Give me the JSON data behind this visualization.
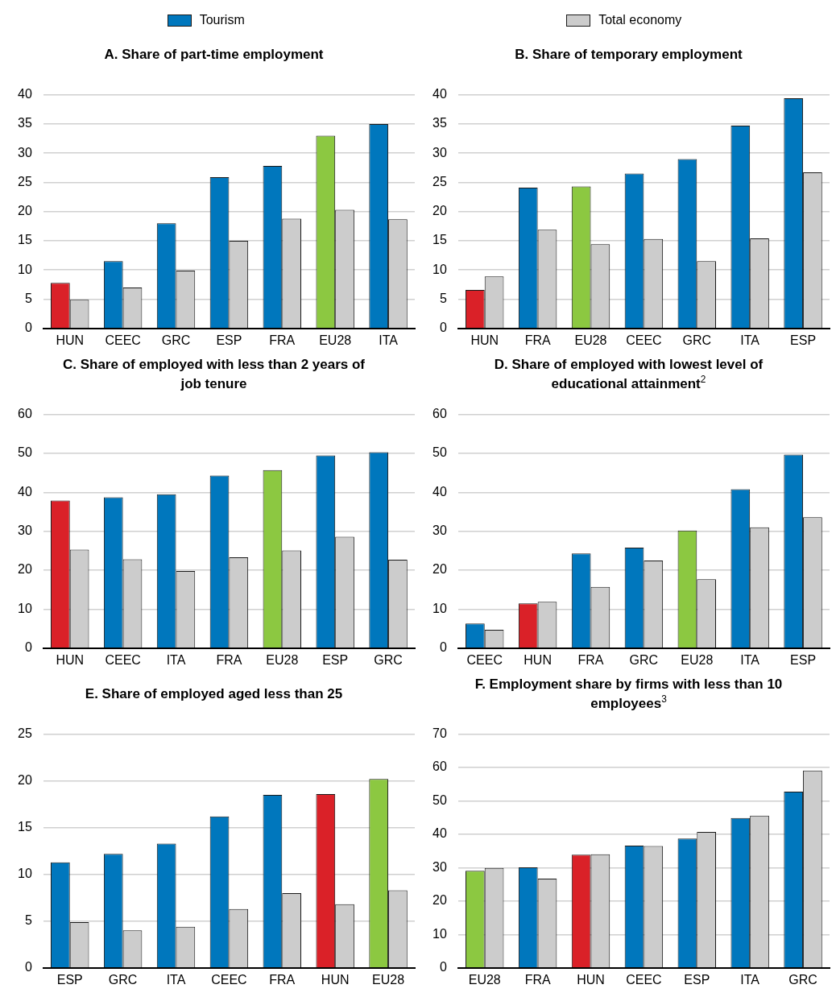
{
  "chart_data": [
    {
      "type": "bar",
      "title": "A. Share of part-time employment",
      "categories": [
        "HUN",
        "CEEC",
        "GRC",
        "ESP",
        "FRA",
        "EU28",
        "ITA"
      ],
      "legend": "top",
      "grid": "y",
      "ylim": [
        0,
        40
      ],
      "yticks": [
        0,
        5,
        10,
        15,
        20,
        25,
        30,
        35,
        40
      ],
      "series": [
        {
          "name": "Tourism",
          "color": "#0077bd",
          "colors": [
            "#da2128",
            "#0077bd",
            "#0077bd",
            "#0077bd",
            "#0077bd",
            "#8cc841",
            "#0077bd"
          ],
          "values": [
            7.8,
            11.5,
            18,
            25.9,
            27.8,
            33,
            35
          ]
        },
        {
          "name": "Total economy",
          "color": "#cccccc",
          "values": [
            4.9,
            7,
            9.9,
            15,
            18.8,
            20.3,
            18.7
          ]
        }
      ]
    },
    {
      "type": "bar",
      "title": "B. Share of temporary employment",
      "categories": [
        "HUN",
        "FRA",
        "EU28",
        "CEEC",
        "GRC",
        "ITA",
        "ESP"
      ],
      "grid": "y",
      "ylim": [
        0,
        40
      ],
      "yticks": [
        0,
        5,
        10,
        15,
        20,
        25,
        30,
        35,
        40
      ],
      "series": [
        {
          "colors": [
            "#da2128",
            "#0077bd",
            "#8cc841",
            "#0077bd",
            "#0077bd",
            "#0077bd",
            "#0077bd"
          ],
          "values": [
            6.6,
            24.1,
            24.3,
            26.5,
            29,
            34.7,
            39.4
          ]
        },
        {
          "color": "#cccccc",
          "values": [
            8.9,
            16.9,
            14.4,
            15.3,
            11.5,
            15.4,
            26.7
          ]
        }
      ]
    },
    {
      "type": "bar",
      "title": "C. Share of employed with less than 2 years of job tenure",
      "categories": [
        "HUN",
        "CEEC",
        "ITA",
        "FRA",
        "EU28",
        "ESP",
        "GRC"
      ],
      "grid": "y",
      "ylim": [
        0,
        60
      ],
      "yticks": [
        0,
        10,
        20,
        30,
        40,
        50,
        60
      ],
      "series": [
        {
          "colors": [
            "#da2128",
            "#0077bd",
            "#0077bd",
            "#0077bd",
            "#8cc841",
            "#0077bd",
            "#0077bd"
          ],
          "values": [
            37.9,
            38.7,
            39.5,
            44.3,
            45.7,
            49.5,
            50.3
          ]
        },
        {
          "color": "#cccccc",
          "values": [
            25.3,
            22.8,
            19.8,
            23.3,
            25.1,
            28.6,
            22.7
          ]
        }
      ]
    },
    {
      "type": "bar",
      "title": "D. Share of employed with lowest level of educational attainment$^{2}$",
      "categories": [
        "CEEC",
        "HUN",
        "FRA",
        "GRC",
        "EU28",
        "ITA",
        "ESP"
      ],
      "grid": "y",
      "ylim": [
        0,
        60
      ],
      "yticks": [
        0,
        10,
        20,
        30,
        40,
        50,
        60
      ],
      "series": [
        {
          "colors": [
            "#0077bd",
            "#da2128",
            "#0077bd",
            "#0077bd",
            "#8cc841",
            "#0077bd",
            "#0077bd"
          ],
          "values": [
            6.3,
            11.5,
            24.3,
            25.8,
            30.2,
            40.8,
            49.7
          ]
        },
        {
          "color": "#cccccc",
          "values": [
            4.7,
            11.9,
            15.7,
            22.5,
            17.7,
            31,
            33.6
          ]
        }
      ]
    },
    {
      "type": "bar",
      "title": "E. Share of employed aged less than 25",
      "categories": [
        "ESP",
        "GRC",
        "ITA",
        "CEEC",
        "FRA",
        "HUN",
        "EU28"
      ],
      "grid": "y",
      "ylim": [
        0,
        25
      ],
      "yticks": [
        0,
        5,
        10,
        15,
        20,
        25
      ],
      "series": [
        {
          "colors": [
            "#0077bd",
            "#0077bd",
            "#0077bd",
            "#0077bd",
            "#0077bd",
            "#da2128",
            "#8cc841"
          ],
          "values": [
            11.3,
            12.2,
            13.3,
            16.2,
            18.5,
            18.6,
            20.2
          ]
        },
        {
          "color": "#cccccc",
          "values": [
            4.9,
            4,
            4.4,
            6.3,
            8,
            6.8,
            8.3
          ]
        }
      ]
    },
    {
      "type": "bar",
      "title": "F. Employment share by firms with less than 10 employees$^{3}$",
      "categories": [
        "EU28",
        "FRA",
        "HUN",
        "CEEC",
        "ESP",
        "ITA",
        "GRC"
      ],
      "grid": "y",
      "ylim": [
        0,
        70
      ],
      "yticks": [
        0,
        10,
        20,
        30,
        40,
        50,
        60,
        70
      ],
      "series": [
        {
          "colors": [
            "#8cc841",
            "#0077bd",
            "#da2128",
            "#0077bd",
            "#0077bd",
            "#0077bd",
            "#0077bd"
          ],
          "values": [
            29.1,
            30.1,
            33.9,
            36.6,
            38.7,
            44.9,
            52.8
          ]
        },
        {
          "color": "#cccccc",
          "values": [
            29.9,
            26.7,
            34,
            36.5,
            40.7,
            45.6,
            59.1
          ]
        }
      ]
    }
  ]
}
